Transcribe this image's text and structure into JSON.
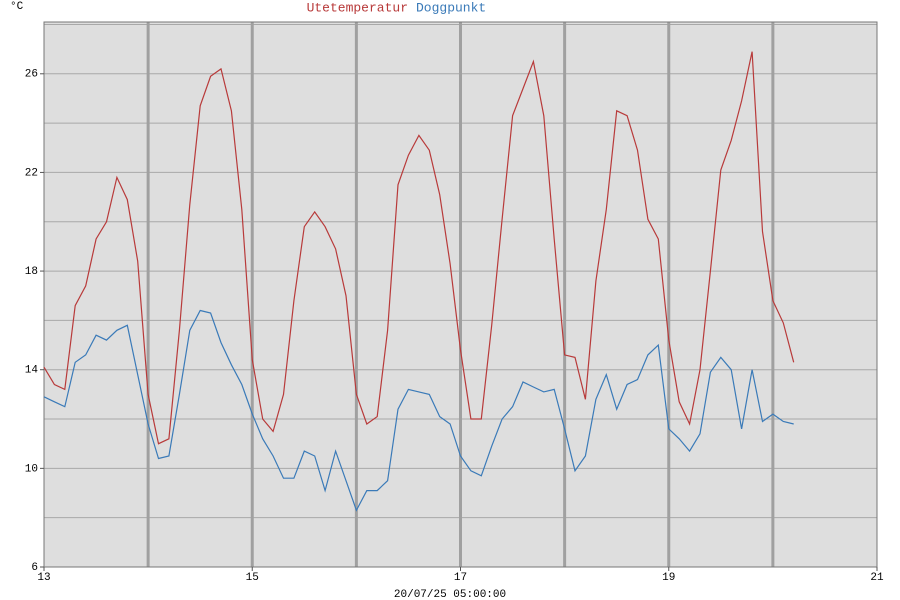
{
  "chart_data": {
    "type": "line",
    "title_parts": [
      "Utetemperatur",
      "Doggpunkt"
    ],
    "unit_label": "°C",
    "xlabel": "20/07/25 05:00:00",
    "x": [
      13.0,
      13.1,
      13.2,
      13.3,
      13.4,
      13.5,
      13.6,
      13.7,
      13.8,
      13.9,
      14.0,
      14.1,
      14.2,
      14.3,
      14.4,
      14.5,
      14.6,
      14.7,
      14.8,
      14.9,
      15.0,
      15.1,
      15.2,
      15.3,
      15.4,
      15.5,
      15.6,
      15.7,
      15.8,
      15.9,
      16.0,
      16.1,
      16.2,
      16.3,
      16.4,
      16.5,
      16.6,
      16.7,
      16.8,
      16.9,
      17.0,
      17.1,
      17.2,
      17.3,
      17.4,
      17.5,
      17.6,
      17.7,
      17.8,
      17.9,
      18.0,
      18.1,
      18.2,
      18.3,
      18.4,
      18.5,
      18.6,
      18.7,
      18.8,
      18.9,
      19.0,
      19.1,
      19.2,
      19.3,
      19.4,
      19.5,
      19.6,
      19.7,
      19.8,
      19.9,
      20.0,
      20.1,
      20.2
    ],
    "series": [
      {
        "name": "Utetemperatur",
        "color": "#b83a3a",
        "values": [
          14.1,
          13.4,
          13.2,
          16.6,
          17.4,
          19.3,
          20.0,
          21.8,
          20.9,
          18.4,
          13.0,
          11.0,
          11.2,
          15.6,
          20.7,
          24.7,
          25.9,
          26.2,
          24.5,
          20.5,
          14.4,
          12.0,
          11.5,
          13.0,
          16.8,
          19.8,
          20.4,
          19.8,
          18.9,
          17.0,
          13.0,
          11.8,
          12.1,
          15.6,
          21.5,
          22.7,
          23.5,
          22.9,
          21.1,
          18.3,
          14.8,
          12.0,
          12.0,
          15.8,
          20.1,
          24.3,
          25.4,
          26.5,
          24.3,
          19.3,
          14.6,
          14.5,
          12.8,
          17.6,
          20.5,
          24.5,
          24.3,
          22.9,
          20.1,
          19.3,
          15.2,
          12.7,
          11.8,
          14.0,
          18.0,
          22.1,
          23.3,
          24.9,
          26.9,
          19.6,
          16.8,
          15.9,
          14.3
        ]
      },
      {
        "name": "Doggpunkt",
        "color": "#3a7ab8",
        "values": [
          12.9,
          12.7,
          12.5,
          14.3,
          14.6,
          15.4,
          15.2,
          15.6,
          15.8,
          13.8,
          11.8,
          10.4,
          10.5,
          13.0,
          15.6,
          16.4,
          16.3,
          15.1,
          14.2,
          13.4,
          12.2,
          11.2,
          10.5,
          9.6,
          9.6,
          10.7,
          10.5,
          9.1,
          10.7,
          9.5,
          8.3,
          9.1,
          9.1,
          9.5,
          12.4,
          13.2,
          13.1,
          13.0,
          12.1,
          11.8,
          10.5,
          9.9,
          9.7,
          10.9,
          12.0,
          12.5,
          13.5,
          13.3,
          13.1,
          13.2,
          11.6,
          9.9,
          10.5,
          12.8,
          13.8,
          12.4,
          13.4,
          13.6,
          14.6,
          15.0,
          11.6,
          11.2,
          10.7,
          11.4,
          13.9,
          14.5,
          14.0,
          11.6,
          14.0,
          11.9,
          12.2,
          11.9,
          11.8
        ]
      }
    ],
    "xlim": [
      13,
      21
    ],
    "ylim": [
      6,
      28.1
    ],
    "xticks": [
      13,
      15,
      17,
      19,
      21
    ],
    "yticks": [
      6,
      10,
      14,
      18,
      22,
      26
    ],
    "xgrid": [
      14,
      15,
      16,
      17,
      18,
      19,
      20
    ],
    "ygrid": [
      8,
      10,
      12,
      14,
      16,
      18,
      20,
      22,
      24,
      26,
      28
    ],
    "grid": true
  }
}
